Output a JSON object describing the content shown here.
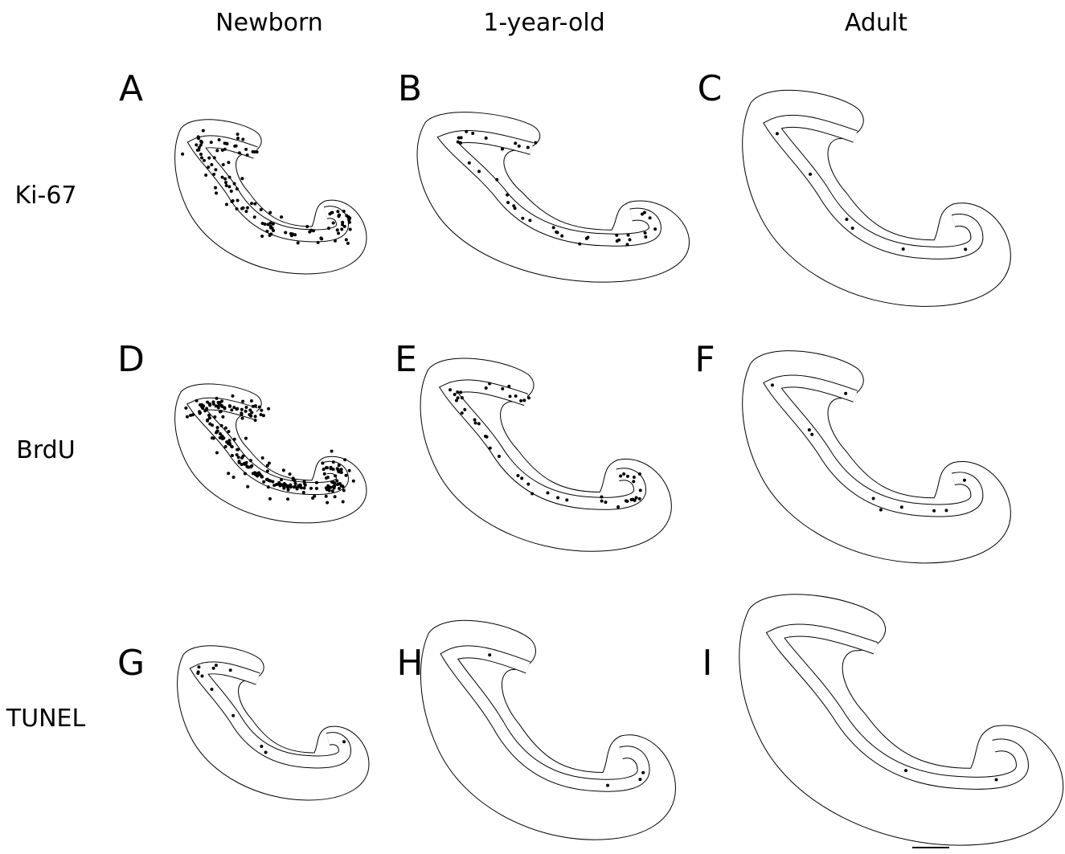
{
  "columns": [
    "Newborn",
    "1-year-old",
    "Adult"
  ],
  "rows": [
    "Ki-67",
    "BrdU",
    "TUNEL"
  ],
  "panels": [
    "A",
    "B",
    "C",
    "D",
    "E",
    "F",
    "G",
    "H",
    "I"
  ]
}
